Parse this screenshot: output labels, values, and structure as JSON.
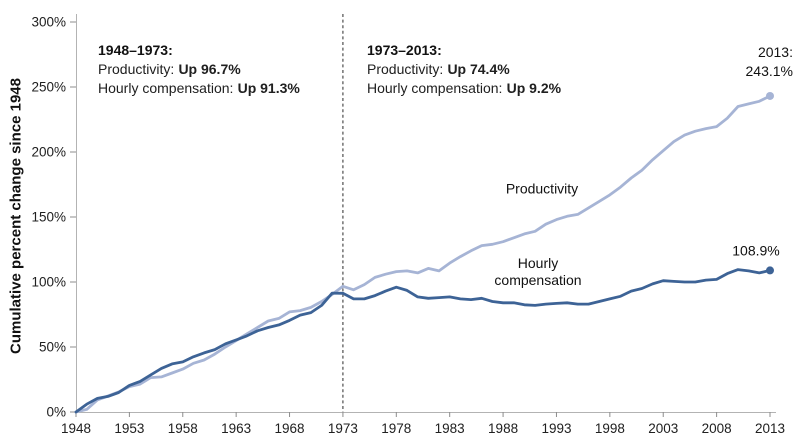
{
  "chart_data": {
    "type": "line",
    "title": "",
    "xlabel": "",
    "ylabel": "Cumulative percent change since 1948",
    "ylim": [
      0,
      300
    ],
    "grid": false,
    "legend_position": "inline-labels",
    "reference_line_x": 1973,
    "x_ticks": [
      1948,
      1953,
      1958,
      1963,
      1968,
      1973,
      1978,
      1983,
      1988,
      1993,
      1998,
      2003,
      2008,
      2013
    ],
    "y_tick_labels": [
      "0%",
      "50%",
      "100%",
      "150%",
      "200%",
      "250%",
      "300%"
    ],
    "x": [
      1948,
      1949,
      1950,
      1951,
      1952,
      1953,
      1954,
      1955,
      1956,
      1957,
      1958,
      1959,
      1960,
      1961,
      1962,
      1963,
      1964,
      1965,
      1966,
      1967,
      1968,
      1969,
      1970,
      1971,
      1972,
      1973,
      1974,
      1975,
      1976,
      1977,
      1978,
      1979,
      1980,
      1981,
      1982,
      1983,
      1984,
      1985,
      1986,
      1987,
      1988,
      1989,
      1990,
      1991,
      1992,
      1993,
      1994,
      1995,
      1996,
      1997,
      1998,
      1999,
      2000,
      2001,
      2002,
      2003,
      2004,
      2005,
      2006,
      2007,
      2008,
      2009,
      2010,
      2011,
      2012,
      2013
    ],
    "series": [
      {
        "name": "Productivity",
        "color": "#a6b4d5",
        "values": [
          0,
          2,
          9.3,
          12.3,
          15.5,
          19.5,
          21.5,
          26.5,
          27,
          30,
          33,
          37.5,
          40,
          44.5,
          50,
          55,
          60,
          65,
          70,
          72,
          77,
          78,
          80.5,
          85,
          90.5,
          96.7,
          94,
          98,
          103.5,
          106,
          108,
          108.5,
          107,
          110.5,
          108.5,
          114.5,
          119.5,
          124,
          128,
          129,
          131,
          134,
          137,
          139,
          144.5,
          148,
          150.5,
          152,
          157,
          162,
          167,
          173,
          180,
          186,
          194,
          201,
          208,
          213,
          216,
          218,
          219.5,
          226,
          235,
          237,
          239,
          243.1
        ]
      },
      {
        "name": "Hourly compensation",
        "color": "#3d6396",
        "values": [
          0,
          6,
          10.5,
          12,
          15,
          20.5,
          23.5,
          28.5,
          33.5,
          37,
          38.5,
          42.5,
          45.5,
          48,
          52.5,
          55.5,
          58.5,
          62.5,
          65,
          67,
          70.5,
          74.5,
          76.5,
          82,
          91.5,
          91.3,
          87,
          87,
          89.5,
          93,
          96,
          93.5,
          88.5,
          87.5,
          88,
          88.5,
          87,
          86.5,
          87.5,
          85,
          84,
          84,
          82.5,
          82,
          83,
          83.5,
          84,
          83,
          83,
          85,
          87,
          89,
          93,
          95,
          98.5,
          101,
          100.5,
          100,
          100,
          101.5,
          102,
          106.5,
          109.5,
          108.5,
          107,
          108.9
        ]
      }
    ]
  },
  "annotations": {
    "period1": {
      "title": "1948–1973:",
      "productivity_label": "Productivity:",
      "productivity_value": "Up 96.7%",
      "compensation_label": "Hourly compensation:",
      "compensation_value": "Up 91.3%"
    },
    "period2": {
      "title": "1973–2013:",
      "productivity_label": "Productivity:",
      "productivity_value": "Up 74.4%",
      "compensation_label": "Hourly compensation:",
      "compensation_value": "Up 9.2%"
    },
    "productivity_series_label": "Productivity",
    "compensation_series_label_line1": "Hourly",
    "compensation_series_label_line2": "compensation",
    "end_productivity_line1": "2013:",
    "end_productivity_line2": "243.1%",
    "end_compensation": "108.9%"
  },
  "colors": {
    "productivity_line": "#a6b4d5",
    "compensation_line": "#3d6396",
    "highlight_red": "#b21a1f",
    "axis_line": "#b3b3b3",
    "tick": "#8c8c8c",
    "tick_text": "#202020",
    "reference_line": "#2b2b2b"
  }
}
